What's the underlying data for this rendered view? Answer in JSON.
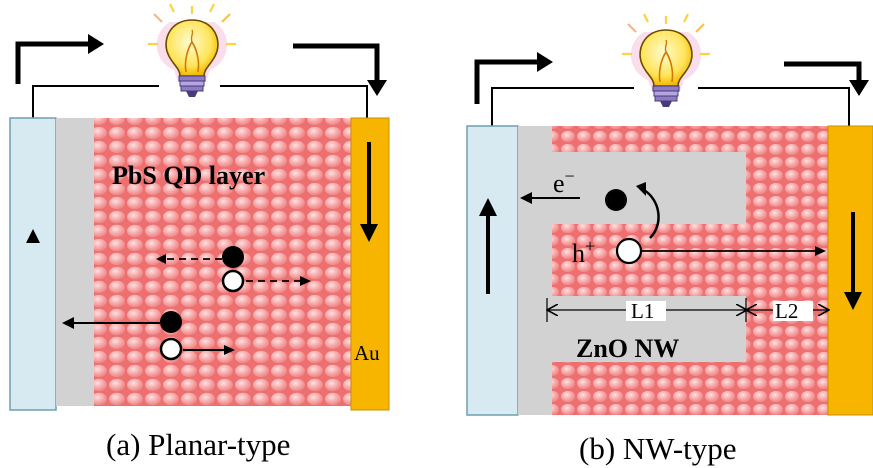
{
  "panel_a": {
    "caption": "(a) Planar-type",
    "layer_label": "PbS QD layer",
    "electrode_label": "Au",
    "icons": [
      "light-bulb-icon",
      "electron-dot",
      "hole-circle"
    ]
  },
  "panel_b": {
    "caption": "(b) NW-type",
    "electron_label": "e−",
    "hole_label": "h+",
    "length_1": "L1",
    "length_2": "L2",
    "nanowire_label": "ZnO NW",
    "icons": [
      "light-bulb-icon",
      "electron-dot",
      "hole-circle"
    ]
  },
  "colors": {
    "transparent_electrode": "#d7eaf1",
    "oxide_layer": "#d2d2d2",
    "qd_layer": "#f07474",
    "qd_dot": "#f8b6b6",
    "gold_electrode": "#f7b500",
    "wire": "#000000"
  }
}
